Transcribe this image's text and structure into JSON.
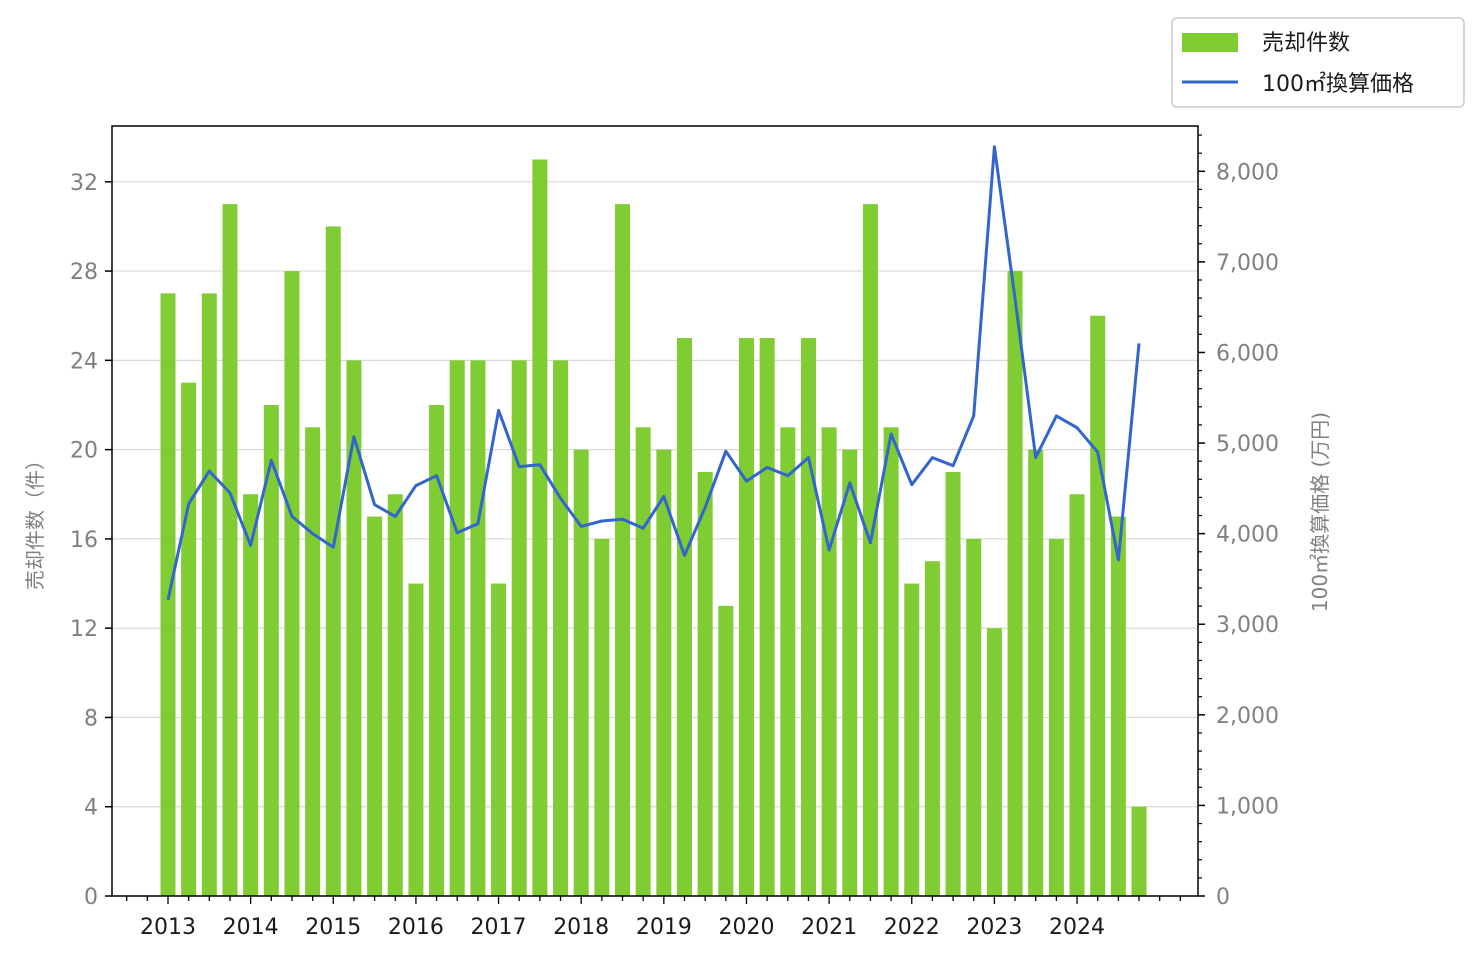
{
  "chart_data": {
    "type": "bar",
    "x_tick_labels": [
      "2013",
      "2014",
      "2015",
      "2016",
      "2017",
      "2018",
      "2019",
      "2020",
      "2021",
      "2022",
      "2023",
      "2024"
    ],
    "y_left": {
      "label": "売却件数（件）",
      "ylim": [
        0,
        34.5
      ],
      "ticks": [
        "0",
        "4",
        "8",
        "12",
        "16",
        "20",
        "24",
        "28",
        "32"
      ]
    },
    "y_right": {
      "label": "100㎡換算価格 (万円)",
      "ylim": [
        0,
        8500
      ],
      "ticks": [
        "0",
        "1,000",
        "2,000",
        "3,000",
        "4,000",
        "5,000",
        "6,000",
        "7,000",
        "8,000"
      ]
    },
    "grid": true,
    "legend_position": "top-right",
    "series": [
      {
        "name": "売却件数",
        "type": "bar",
        "axis": "left",
        "color": "#80cc33",
        "values": [
          27,
          23,
          27,
          31,
          18,
          22,
          28,
          21,
          30,
          24,
          17,
          18,
          14,
          22,
          24,
          24,
          14,
          24,
          33,
          24,
          20,
          16,
          31,
          21,
          20,
          25,
          19,
          13,
          25,
          25,
          21,
          25,
          21,
          20,
          31,
          21,
          14,
          15,
          19,
          16,
          12,
          28,
          20,
          16,
          18,
          26,
          17,
          4
        ]
      },
      {
        "name": "100㎡換算価格",
        "type": "line",
        "axis": "right",
        "color": "#3366cc",
        "values": [
          3270,
          4330,
          4690,
          4450,
          3870,
          4810,
          4190,
          4000,
          3850,
          5070,
          4320,
          4190,
          4530,
          4640,
          4010,
          4110,
          5360,
          4740,
          4760,
          4390,
          4080,
          4140,
          4160,
          4060,
          4410,
          3760,
          4290,
          4910,
          4580,
          4730,
          4640,
          4840,
          3820,
          4560,
          3900,
          5100,
          4540,
          4840,
          4750,
          5300,
          8270,
          6590,
          4840,
          5300,
          5170,
          4900,
          3710,
          6100
        ]
      }
    ]
  }
}
